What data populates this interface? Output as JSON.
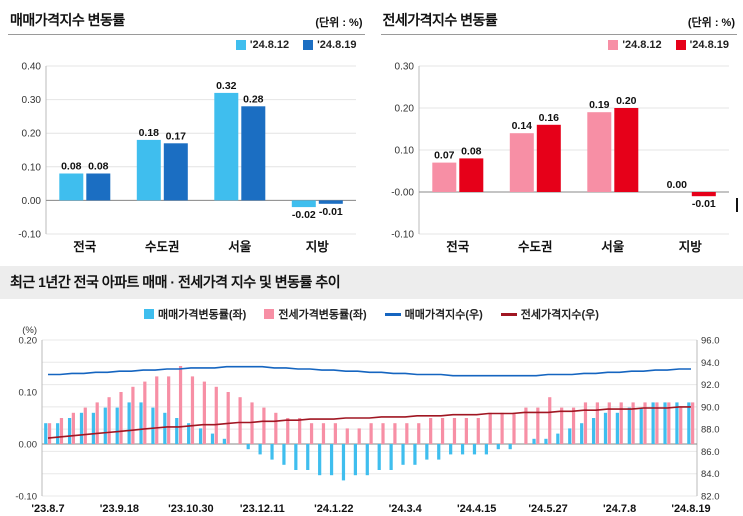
{
  "chart_data": [
    {
      "id": "sales-change-bar",
      "type": "bar",
      "title": "매매가격지수 변동률",
      "unit_label": "(단위 : %)",
      "categories": [
        "전국",
        "수도권",
        "서울",
        "지방"
      ],
      "series": [
        {
          "name": "'24.8.12",
          "color": "#3FBEEE",
          "values": [
            0.08,
            0.18,
            0.32,
            -0.02
          ]
        },
        {
          "name": "'24.8.19",
          "color": "#1B6EC2",
          "values": [
            0.08,
            0.17,
            0.28,
            -0.01
          ]
        }
      ],
      "ylim": [
        -0.1,
        0.4
      ],
      "ytick_step": 0.1,
      "grid": true,
      "legend_position": "top-right"
    },
    {
      "id": "jeonse-change-bar",
      "type": "bar",
      "title": "전세가격지수 변동률",
      "unit_label": "(단위 : %)",
      "categories": [
        "전국",
        "수도권",
        "서울",
        "지방"
      ],
      "series": [
        {
          "name": "'24.8.12",
          "color": "#F78FA5",
          "values": [
            0.07,
            0.14,
            0.19,
            0.0
          ]
        },
        {
          "name": "'24.8.19",
          "color": "#E60019",
          "values": [
            0.08,
            0.16,
            0.2,
            -0.01
          ]
        }
      ],
      "ylim": [
        -0.1,
        0.3
      ],
      "ytick_step": 0.1,
      "grid": true,
      "legend_position": "top-right"
    },
    {
      "id": "trend-combo",
      "type": "bar+line",
      "title": "최근 1년간 전국 아파트 매매 · 전세가격 지수 및 변동률 추이",
      "x_tick_labels": [
        "'23.8.7",
        "'23.9.18",
        "'23.10.30",
        "'23.12.11",
        "'24.1.22",
        "'24.3.4",
        "'24.4.15",
        "'24.5.27",
        "'24.7.8",
        "'24.8.19"
      ],
      "x_tick_every": 6,
      "n_points": 55,
      "left_axis": {
        "label": "(%)",
        "ylim": [
          -0.1,
          0.2
        ],
        "ticks": [
          0.2,
          0.1,
          0.0,
          -0.1
        ]
      },
      "right_axis": {
        "ylim": [
          82.0,
          96.0
        ],
        "ticks": [
          96.0,
          94.0,
          92.0,
          90.0,
          88.0,
          86.0,
          84.0,
          82.0
        ]
      },
      "bar_series": [
        {
          "name": "매매가격변동률(좌)",
          "color": "#3FBEEE",
          "values": [
            0.04,
            0.04,
            0.05,
            0.06,
            0.06,
            0.07,
            0.07,
            0.08,
            0.08,
            0.07,
            0.06,
            0.05,
            0.04,
            0.03,
            0.02,
            0.01,
            0.0,
            -0.01,
            -0.02,
            -0.03,
            -0.04,
            -0.05,
            -0.05,
            -0.06,
            -0.06,
            -0.07,
            -0.06,
            -0.06,
            -0.05,
            -0.05,
            -0.04,
            -0.04,
            -0.03,
            -0.03,
            -0.02,
            -0.02,
            -0.02,
            -0.02,
            -0.01,
            -0.01,
            0.0,
            0.01,
            0.01,
            0.02,
            0.03,
            0.04,
            0.05,
            0.06,
            0.06,
            0.07,
            0.07,
            0.08,
            0.08,
            0.08,
            0.08
          ]
        },
        {
          "name": "전세가격변동률(좌)",
          "color": "#F78FA5",
          "values": [
            0.04,
            0.05,
            0.06,
            0.07,
            0.08,
            0.09,
            0.1,
            0.11,
            0.12,
            0.13,
            0.13,
            0.15,
            0.13,
            0.12,
            0.11,
            0.1,
            0.09,
            0.08,
            0.07,
            0.06,
            0.05,
            0.05,
            0.04,
            0.04,
            0.04,
            0.03,
            0.03,
            0.04,
            0.04,
            0.04,
            0.04,
            0.04,
            0.05,
            0.05,
            0.05,
            0.05,
            0.05,
            0.06,
            0.06,
            0.06,
            0.07,
            0.07,
            0.09,
            0.07,
            0.07,
            0.08,
            0.08,
            0.08,
            0.08,
            0.08,
            0.08,
            0.08,
            0.08,
            0.07,
            0.08
          ]
        }
      ],
      "line_series": [
        {
          "name": "매매가격지수(우)",
          "color": "#1565C0",
          "axis": "right",
          "values": [
            92.9,
            92.9,
            93.0,
            93.0,
            93.1,
            93.1,
            93.2,
            93.2,
            93.3,
            93.3,
            93.4,
            93.4,
            93.5,
            93.5,
            93.5,
            93.6,
            93.6,
            93.6,
            93.6,
            93.5,
            93.5,
            93.4,
            93.4,
            93.3,
            93.3,
            93.2,
            93.2,
            93.1,
            93.1,
            93.0,
            93.0,
            92.9,
            92.9,
            92.9,
            92.8,
            92.8,
            92.8,
            92.8,
            92.8,
            92.8,
            92.8,
            92.8,
            92.9,
            92.9,
            92.9,
            93.0,
            93.0,
            93.1,
            93.1,
            93.2,
            93.2,
            93.3,
            93.3,
            93.4,
            93.4
          ]
        },
        {
          "name": "전세가격지수(우)",
          "color": "#A01622",
          "axis": "right",
          "values": [
            87.2,
            87.3,
            87.4,
            87.5,
            87.6,
            87.7,
            87.8,
            87.9,
            88.0,
            88.1,
            88.2,
            88.2,
            88.3,
            88.4,
            88.4,
            88.5,
            88.6,
            88.6,
            88.7,
            88.7,
            88.8,
            88.8,
            88.9,
            88.9,
            88.9,
            89.0,
            89.0,
            89.0,
            89.1,
            89.1,
            89.1,
            89.2,
            89.2,
            89.2,
            89.3,
            89.3,
            89.3,
            89.4,
            89.4,
            89.4,
            89.5,
            89.5,
            89.5,
            89.6,
            89.6,
            89.7,
            89.7,
            89.8,
            89.8,
            89.8,
            89.9,
            89.9,
            89.9,
            90.0,
            90.0
          ]
        }
      ]
    }
  ]
}
